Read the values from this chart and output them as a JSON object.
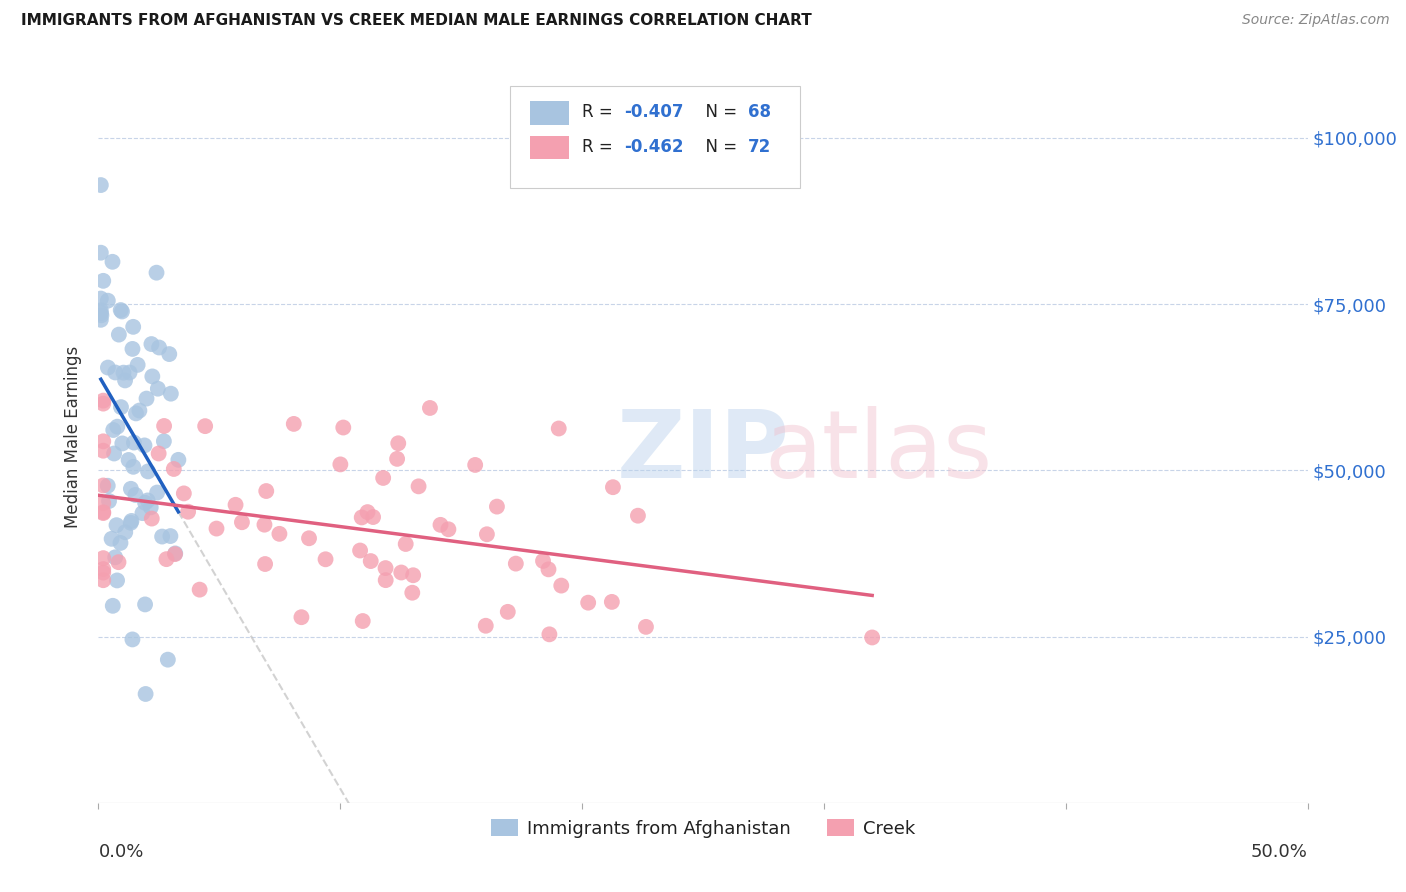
{
  "title": "IMMIGRANTS FROM AFGHANISTAN VS CREEK MEDIAN MALE EARNINGS CORRELATION CHART",
  "source": "Source: ZipAtlas.com",
  "ylabel": "Median Male Earnings",
  "ytick_labels": [
    "$25,000",
    "$50,000",
    "$75,000",
    "$100,000"
  ],
  "ytick_values": [
    25000,
    50000,
    75000,
    100000
  ],
  "ylim": [
    0,
    110000
  ],
  "xlim": [
    0.0,
    0.5
  ],
  "legend_label1": "Immigrants from Afghanistan",
  "legend_label2": "Creek",
  "color_afghan": "#a8c4e0",
  "color_creek": "#f4a0b0",
  "color_line_afghan": "#2060c0",
  "color_line_creek": "#e06080",
  "color_line_extend": "#c0c0c0",
  "R_afghan": -0.407,
  "N_afghan": 68,
  "R_creek": -0.462,
  "N_creek": 72,
  "title_fontsize": 11,
  "source_fontsize": 10,
  "tick_fontsize": 13,
  "ylabel_fontsize": 12
}
